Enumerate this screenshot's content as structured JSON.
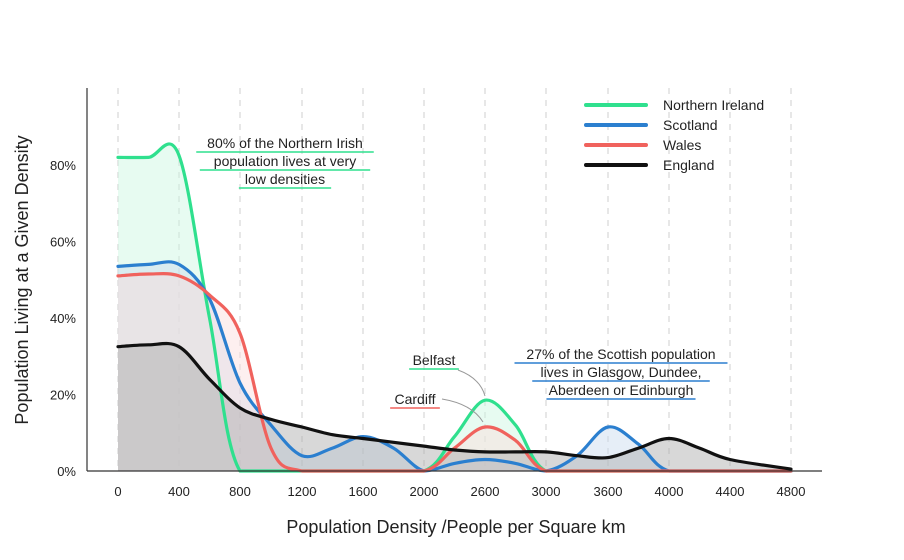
{
  "chart_data": {
    "type": "area",
    "title": "",
    "xlabel": "Population Density /People per Square km",
    "ylabel": "Population Living at a Given Density",
    "x_ticks": [
      "0",
      "400",
      "800",
      "1200",
      "1600",
      "2000",
      "2600",
      "3000",
      "3600",
      "4000",
      "4400",
      "4800"
    ],
    "y_ticks": [
      "0%",
      "20%",
      "40%",
      "60%",
      "80%"
    ],
    "ylim": [
      0,
      100
    ],
    "grid": "vertical dashed",
    "legend_position": "top-right",
    "series": [
      {
        "name": "Northern Ireland",
        "color": "#2fe08e",
        "fill": "#c9f6df",
        "points": [
          [
            0,
            82
          ],
          [
            200,
            82
          ],
          [
            400,
            82.5
          ],
          [
            600,
            40
          ],
          [
            800,
            0
          ],
          [
            1200,
            0
          ],
          [
            1600,
            0
          ],
          [
            2000,
            0
          ],
          [
            2300,
            9
          ],
          [
            2600,
            18.5
          ],
          [
            2800,
            12
          ],
          [
            3000,
            0
          ],
          [
            3600,
            0
          ],
          [
            4000,
            0
          ],
          [
            4800,
            0
          ]
        ]
      },
      {
        "name": "Scotland",
        "color": "#2b7fcf",
        "fill": "#c7daee",
        "points": [
          [
            0,
            53.5
          ],
          [
            200,
            54
          ],
          [
            400,
            54
          ],
          [
            600,
            45
          ],
          [
            800,
            23
          ],
          [
            1000,
            12
          ],
          [
            1200,
            4
          ],
          [
            1400,
            6
          ],
          [
            1600,
            9
          ],
          [
            1800,
            6
          ],
          [
            2000,
            0
          ],
          [
            2300,
            2
          ],
          [
            2600,
            3
          ],
          [
            2800,
            2
          ],
          [
            3000,
            0
          ],
          [
            3300,
            4
          ],
          [
            3600,
            11.5
          ],
          [
            3800,
            7
          ],
          [
            4000,
            0
          ],
          [
            4400,
            0
          ],
          [
            4800,
            0
          ]
        ]
      },
      {
        "name": "Wales",
        "color": "#f0625d",
        "fill": "#fadcdc",
        "points": [
          [
            0,
            51
          ],
          [
            200,
            51.5
          ],
          [
            400,
            51
          ],
          [
            600,
            46
          ],
          [
            800,
            36
          ],
          [
            1000,
            6
          ],
          [
            1200,
            0
          ],
          [
            1600,
            0
          ],
          [
            2000,
            0
          ],
          [
            2300,
            6
          ],
          [
            2600,
            11.5
          ],
          [
            2800,
            8
          ],
          [
            3000,
            0
          ],
          [
            3600,
            0
          ],
          [
            4000,
            0
          ],
          [
            4800,
            0
          ]
        ]
      },
      {
        "name": "England",
        "color": "#111111",
        "fill": "#a9a9a9",
        "points": [
          [
            0,
            32.5
          ],
          [
            200,
            33
          ],
          [
            400,
            32.5
          ],
          [
            600,
            24
          ],
          [
            800,
            16.5
          ],
          [
            1000,
            13.5
          ],
          [
            1200,
            11.5
          ],
          [
            1400,
            9.5
          ],
          [
            1600,
            8.5
          ],
          [
            1800,
            7.5
          ],
          [
            2000,
            6.5
          ],
          [
            2300,
            5.5
          ],
          [
            2600,
            5
          ],
          [
            2800,
            5
          ],
          [
            3000,
            5
          ],
          [
            3300,
            4
          ],
          [
            3600,
            3.5
          ],
          [
            3800,
            6
          ],
          [
            4000,
            8.5
          ],
          [
            4200,
            6
          ],
          [
            4400,
            3
          ],
          [
            4800,
            0.5
          ]
        ]
      }
    ],
    "annotations": [
      {
        "lines": [
          "80% of the Northern Irish",
          "population lives at very",
          "low densities"
        ],
        "color": "#2fe08e"
      },
      {
        "lines": [
          "Belfast"
        ],
        "color": "#2fe08e"
      },
      {
        "lines": [
          "Cardiff"
        ],
        "color": "#f0625d"
      },
      {
        "lines": [
          "27% of the Scottish population",
          "lives in Glasgow, Dundee,",
          "Aberdeen or Edinburgh"
        ],
        "color": "#2b7fcf"
      }
    ]
  }
}
